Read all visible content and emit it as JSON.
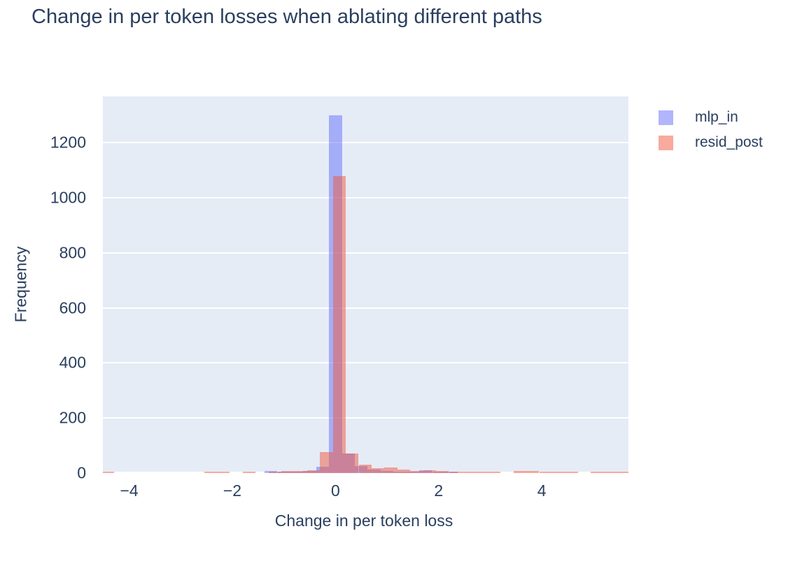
{
  "chart_data": {
    "type": "bar",
    "subtype": "overlaid-histogram",
    "title": "Change in per token losses when ablating different paths",
    "xlabel": "Change in per token loss",
    "ylabel": "Frequency",
    "xlim": [
      -4.51,
      5.68
    ],
    "ylim": [
      0,
      1368
    ],
    "grid": true,
    "legend_position": "top-right",
    "xticks": [
      {
        "v": -4,
        "label": "−4"
      },
      {
        "v": -2,
        "label": "−2"
      },
      {
        "v": 0,
        "label": "0"
      },
      {
        "v": 2,
        "label": "2"
      },
      {
        "v": 4,
        "label": "4"
      }
    ],
    "yticks": [
      {
        "v": 0,
        "label": "0"
      },
      {
        "v": 200,
        "label": "200"
      },
      {
        "v": 400,
        "label": "400"
      },
      {
        "v": 600,
        "label": "600"
      },
      {
        "v": 800,
        "label": "800"
      },
      {
        "v": 1000,
        "label": "1000"
      },
      {
        "v": 1200,
        "label": "1200"
      }
    ],
    "bin_width": 0.25,
    "series": [
      {
        "name": "mlp_in",
        "color": "rgba(99,110,250,0.5)",
        "base_color": "#636efa",
        "bins": [
          [
            -1.375,
            7
          ],
          [
            -1.125,
            5
          ],
          [
            -0.875,
            6
          ],
          [
            -0.625,
            8
          ],
          [
            -0.375,
            22
          ],
          [
            -0.125,
            1300
          ],
          [
            0.125,
            70
          ],
          [
            0.375,
            26
          ],
          [
            0.625,
            12
          ],
          [
            0.875,
            8
          ],
          [
            1.125,
            6
          ],
          [
            1.375,
            5
          ],
          [
            1.625,
            11
          ],
          [
            1.875,
            5
          ],
          [
            2.125,
            4
          ]
        ]
      },
      {
        "name": "resid_post",
        "color": "rgba(239,85,59,0.5)",
        "base_color": "#ef553b",
        "bins": [
          [
            -4.55,
            6
          ],
          [
            -2.55,
            5
          ],
          [
            -2.3,
            5
          ],
          [
            -1.8,
            5
          ],
          [
            -1.3,
            6
          ],
          [
            -1.05,
            7
          ],
          [
            -0.8,
            9
          ],
          [
            -0.55,
            11
          ],
          [
            -0.3,
            77
          ],
          [
            -0.05,
            1080
          ],
          [
            0.2,
            71
          ],
          [
            0.45,
            30
          ],
          [
            0.7,
            17
          ],
          [
            0.95,
            21
          ],
          [
            1.2,
            13
          ],
          [
            1.45,
            8
          ],
          [
            1.7,
            11
          ],
          [
            1.95,
            8
          ],
          [
            2.2,
            6
          ],
          [
            2.45,
            5
          ],
          [
            2.7,
            5
          ],
          [
            2.95,
            5
          ],
          [
            3.45,
            8
          ],
          [
            3.7,
            8
          ],
          [
            3.95,
            6
          ],
          [
            4.2,
            6
          ],
          [
            4.45,
            6
          ],
          [
            4.95,
            6
          ],
          [
            5.2,
            6
          ],
          [
            5.45,
            6
          ]
        ]
      }
    ],
    "colors": {
      "title_text": "#2a3f5f",
      "tick_text": "#2a3f5f",
      "plot_background": "#e5ecf6",
      "gridline": "#ffffff",
      "page_background": "#ffffff"
    }
  },
  "legend": {
    "items": [
      {
        "label": "mlp_in"
      },
      {
        "label": "resid_post"
      }
    ]
  }
}
